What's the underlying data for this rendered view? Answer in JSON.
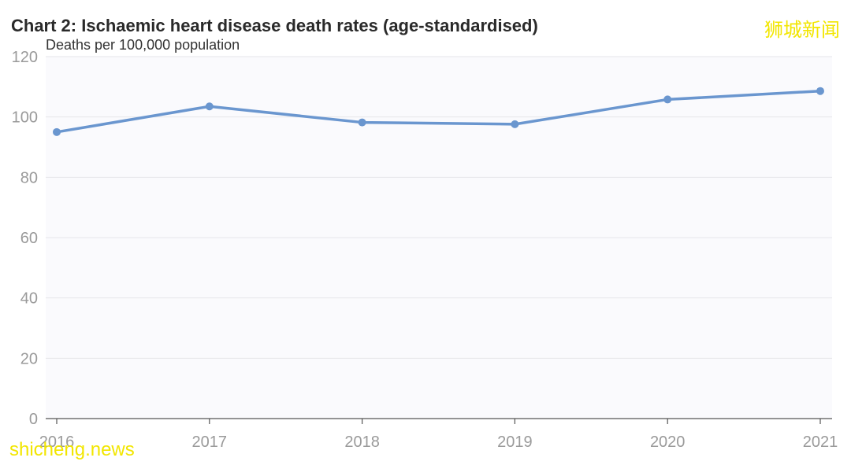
{
  "chart_data": {
    "type": "line",
    "title": "Chart 2: Ischaemic heart disease death rates (age-standardised)",
    "ylabel": "Deaths per 100,000 population",
    "xlabel": "",
    "x": [
      "2016",
      "2017",
      "2018",
      "2019",
      "2020",
      "2021"
    ],
    "series": [
      {
        "values": [
          95.0,
          103.5,
          98.2,
          97.6,
          105.8,
          108.6
        ]
      }
    ],
    "ylim": [
      0,
      120
    ],
    "yticks": [
      0,
      20,
      40,
      60,
      80,
      100,
      120
    ],
    "grid": true,
    "colors": {
      "line": "#6a96cf",
      "grid": "#e6e6ea",
      "axis": "#555555",
      "plot_bg": "#fafafd"
    }
  },
  "watermark": {
    "top": "狮城新闻",
    "bottom": "shicheng.news"
  }
}
